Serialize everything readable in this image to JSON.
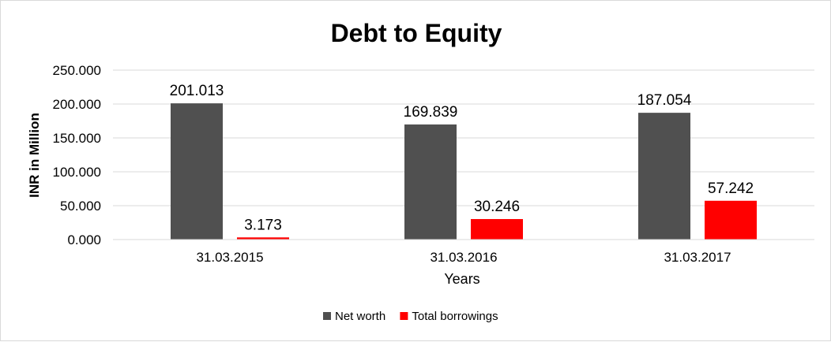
{
  "chart_data": {
    "type": "bar",
    "title": "Debt to Equity",
    "xlabel": "Years",
    "ylabel": "INR in Million",
    "categories": [
      "31.03.2015",
      "31.03.2016",
      "31.03.2017"
    ],
    "series": [
      {
        "name": "Net worth",
        "values": [
          201.013,
          169.839,
          187.054
        ],
        "labels": [
          "201.013",
          "169.839",
          "187.054"
        ],
        "color": "#505050"
      },
      {
        "name": "Total borrowings",
        "values": [
          3.173,
          30.246,
          57.242
        ],
        "labels": [
          "3.173",
          "30.246",
          "57.242"
        ],
        "color": "#ff0000"
      }
    ],
    "ylim": [
      0,
      250
    ],
    "yticks": [
      0,
      50,
      100,
      150,
      200,
      250
    ],
    "ytick_labels": [
      "0.000",
      "50.000",
      "100.000",
      "150.000",
      "200.000",
      "250.000"
    ],
    "grid": true,
    "gridline_color": "#d9d9d9",
    "legend_position": "bottom"
  }
}
